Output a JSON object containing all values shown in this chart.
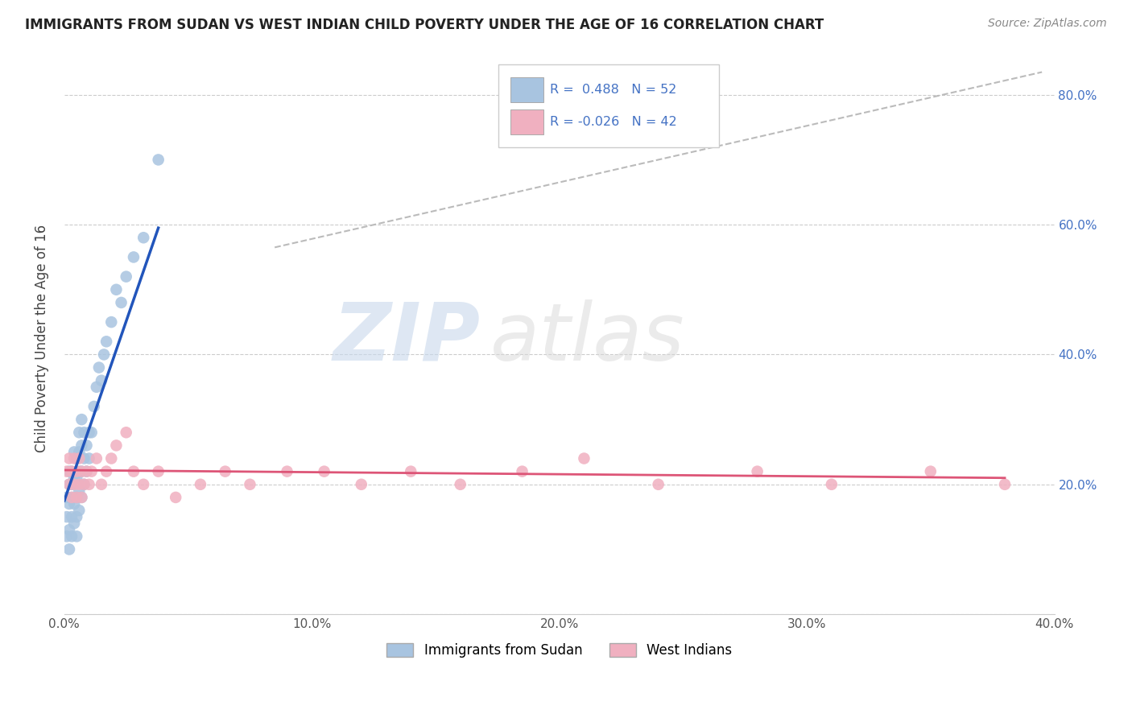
{
  "title": "IMMIGRANTS FROM SUDAN VS WEST INDIAN CHILD POVERTY UNDER THE AGE OF 16 CORRELATION CHART",
  "source": "Source: ZipAtlas.com",
  "ylabel": "Child Poverty Under the Age of 16",
  "xlim": [
    0.0,
    0.4
  ],
  "ylim": [
    0.0,
    0.85
  ],
  "x_tick_vals": [
    0.0,
    0.1,
    0.2,
    0.3,
    0.4
  ],
  "x_tick_labels": [
    "0.0%",
    "10.0%",
    "20.0%",
    "30.0%",
    "40.0%"
  ],
  "y_tick_vals": [
    0.0,
    0.2,
    0.4,
    0.6,
    0.8
  ],
  "y_tick_labels_right": [
    "",
    "20.0%",
    "40.0%",
    "60.0%",
    "80.0%"
  ],
  "r_sudan": 0.488,
  "n_sudan": 52,
  "r_west_indian": -0.026,
  "n_west_indian": 42,
  "color_sudan": "#a8c4e0",
  "color_west_indian": "#f0b0c0",
  "line_color_sudan": "#2255bb",
  "line_color_west_indian": "#dd5577",
  "trend_color_dashed": "#bbbbbb",
  "watermark_zip": "ZIP",
  "watermark_atlas": "atlas",
  "legend_label_sudan": "Immigrants from Sudan",
  "legend_label_west_indian": "West Indians",
  "sudan_x": [
    0.001,
    0.001,
    0.001,
    0.002,
    0.002,
    0.002,
    0.002,
    0.002,
    0.003,
    0.003,
    0.003,
    0.003,
    0.003,
    0.004,
    0.004,
    0.004,
    0.004,
    0.005,
    0.005,
    0.005,
    0.005,
    0.005,
    0.006,
    0.006,
    0.006,
    0.006,
    0.006,
    0.007,
    0.007,
    0.007,
    0.007,
    0.008,
    0.008,
    0.008,
    0.009,
    0.009,
    0.01,
    0.01,
    0.011,
    0.012,
    0.013,
    0.014,
    0.015,
    0.016,
    0.017,
    0.019,
    0.021,
    0.023,
    0.025,
    0.028,
    0.032,
    0.038
  ],
  "sudan_y": [
    0.12,
    0.15,
    0.18,
    0.1,
    0.13,
    0.17,
    0.2,
    0.22,
    0.12,
    0.15,
    0.18,
    0.2,
    0.22,
    0.14,
    0.17,
    0.21,
    0.25,
    0.12,
    0.15,
    0.18,
    0.21,
    0.24,
    0.16,
    0.19,
    0.22,
    0.25,
    0.28,
    0.18,
    0.22,
    0.26,
    0.3,
    0.2,
    0.24,
    0.28,
    0.22,
    0.26,
    0.24,
    0.28,
    0.28,
    0.32,
    0.35,
    0.38,
    0.36,
    0.4,
    0.42,
    0.45,
    0.5,
    0.48,
    0.52,
    0.55,
    0.58,
    0.7
  ],
  "west_indian_x": [
    0.001,
    0.002,
    0.002,
    0.003,
    0.003,
    0.004,
    0.004,
    0.005,
    0.005,
    0.006,
    0.006,
    0.007,
    0.007,
    0.008,
    0.009,
    0.01,
    0.011,
    0.013,
    0.015,
    0.017,
    0.019,
    0.021,
    0.025,
    0.028,
    0.032,
    0.038,
    0.045,
    0.055,
    0.065,
    0.075,
    0.09,
    0.105,
    0.12,
    0.14,
    0.16,
    0.185,
    0.21,
    0.24,
    0.28,
    0.31,
    0.35,
    0.38
  ],
  "west_indian_y": [
    0.22,
    0.2,
    0.24,
    0.18,
    0.22,
    0.2,
    0.24,
    0.18,
    0.22,
    0.2,
    0.24,
    0.18,
    0.22,
    0.2,
    0.22,
    0.2,
    0.22,
    0.24,
    0.2,
    0.22,
    0.24,
    0.26,
    0.28,
    0.22,
    0.2,
    0.22,
    0.18,
    0.2,
    0.22,
    0.2,
    0.22,
    0.22,
    0.2,
    0.22,
    0.2,
    0.22,
    0.24,
    0.2,
    0.22,
    0.2,
    0.22,
    0.2
  ],
  "sudan_line_x0": 0.0,
  "sudan_line_y0": 0.175,
  "sudan_line_x1": 0.038,
  "sudan_line_y1": 0.595,
  "wi_line_x0": 0.0,
  "wi_line_y0": 0.222,
  "wi_line_x1": 0.38,
  "wi_line_y1": 0.21,
  "dash_line_x0": 0.085,
  "dash_line_y0": 0.565,
  "dash_line_x1": 0.395,
  "dash_line_y1": 0.835
}
